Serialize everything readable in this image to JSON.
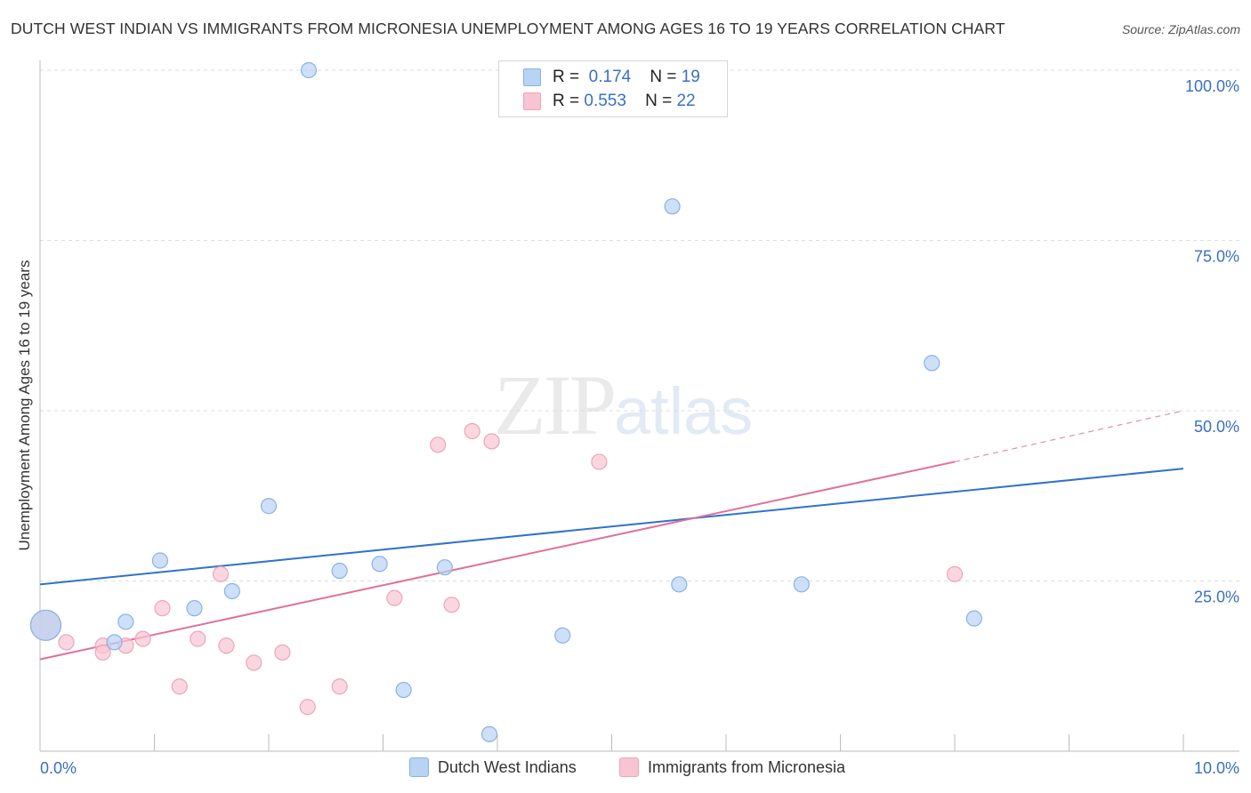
{
  "title": "DUTCH WEST INDIAN VS IMMIGRANTS FROM MICRONESIA UNEMPLOYMENT AMONG AGES 16 TO 19 YEARS CORRELATION CHART",
  "source": "Source: ZipAtlas.com",
  "watermark": {
    "zip": "ZIP",
    "atlas": "atlas"
  },
  "legend_top": {
    "rows": [
      {
        "r_label": "R =",
        "r_value": "0.174",
        "n_label": "N =",
        "n_value": "19"
      },
      {
        "r_label": "R =",
        "r_value": "0.553",
        "n_label": "N =",
        "n_value": "22"
      }
    ]
  },
  "colors": {
    "blue_fill": "#b8d3f3",
    "blue_stroke": "#8ab2e3",
    "blue_line": "#2f72cc",
    "pink_fill": "#f8c4d3",
    "pink_stroke": "#eea4ba",
    "pink_line": "#e0709a",
    "tick_label": "#3a6fc4",
    "grid": "#dddddd"
  },
  "chart_data": {
    "type": "scatter",
    "title": "DUTCH WEST INDIAN VS IMMIGRANTS FROM MICRONESIA UNEMPLOYMENT AMONG AGES 16 TO 19 YEARS CORRELATION CHART",
    "xlabel": "",
    "ylabel": "Unemployment Among Ages 16 to 19 years",
    "xlim": [
      0,
      10
    ],
    "ylim": [
      0,
      100
    ],
    "x_tick_labels": [
      "0.0%",
      "10.0%"
    ],
    "y_ticks": [
      25,
      50,
      75,
      100
    ],
    "y_tick_labels": [
      "25.0%",
      "50.0%",
      "75.0%",
      "100.0%"
    ],
    "grid": true,
    "legend_position": "bottom",
    "series": [
      {
        "name": "Dutch West Indians",
        "color": "#b8d3f3",
        "points": [
          {
            "x": 0.05,
            "y": 18.5,
            "big": true
          },
          {
            "x": 0.65,
            "y": 16
          },
          {
            "x": 0.75,
            "y": 19
          },
          {
            "x": 1.05,
            "y": 28
          },
          {
            "x": 1.35,
            "y": 21
          },
          {
            "x": 1.68,
            "y": 23.5
          },
          {
            "x": 2.0,
            "y": 36
          },
          {
            "x": 2.35,
            "y": 100
          },
          {
            "x": 2.62,
            "y": 26.5
          },
          {
            "x": 2.97,
            "y": 27.5
          },
          {
            "x": 3.18,
            "y": 9
          },
          {
            "x": 3.54,
            "y": 27
          },
          {
            "x": 3.93,
            "y": 2.5
          },
          {
            "x": 4.57,
            "y": 17
          },
          {
            "x": 5.53,
            "y": 80
          },
          {
            "x": 5.59,
            "y": 24.5
          },
          {
            "x": 6.66,
            "y": 24.5
          },
          {
            "x": 7.8,
            "y": 57
          },
          {
            "x": 8.17,
            "y": 19.5
          }
        ],
        "trend": {
          "x": [
            0,
            10
          ],
          "y": [
            24.5,
            41.5
          ]
        }
      },
      {
        "name": "Immigrants from Micronesia",
        "color": "#f8c4d3",
        "points": [
          {
            "x": 0.05,
            "y": 18.5,
            "big": true
          },
          {
            "x": 0.23,
            "y": 16
          },
          {
            "x": 0.55,
            "y": 15.5
          },
          {
            "x": 0.55,
            "y": 14.5
          },
          {
            "x": 0.75,
            "y": 15.5
          },
          {
            "x": 0.9,
            "y": 16.5
          },
          {
            "x": 1.07,
            "y": 21
          },
          {
            "x": 1.22,
            "y": 9.5
          },
          {
            "x": 1.38,
            "y": 16.5
          },
          {
            "x": 1.58,
            "y": 26
          },
          {
            "x": 1.63,
            "y": 15.5
          },
          {
            "x": 1.87,
            "y": 13
          },
          {
            "x": 2.12,
            "y": 14.5
          },
          {
            "x": 2.34,
            "y": 6.5
          },
          {
            "x": 2.62,
            "y": 9.5
          },
          {
            "x": 3.1,
            "y": 22.5
          },
          {
            "x": 3.48,
            "y": 45
          },
          {
            "x": 3.6,
            "y": 21.5
          },
          {
            "x": 3.78,
            "y": 47
          },
          {
            "x": 3.95,
            "y": 45.5
          },
          {
            "x": 4.89,
            "y": 42.5
          },
          {
            "x": 8.0,
            "y": 26
          }
        ],
        "trend": {
          "x": [
            0,
            8.0
          ],
          "y": [
            13.5,
            42.5
          ]
        },
        "trend_dashed": {
          "x": [
            8.0,
            10
          ],
          "y": [
            42.5,
            50
          ]
        }
      }
    ]
  }
}
